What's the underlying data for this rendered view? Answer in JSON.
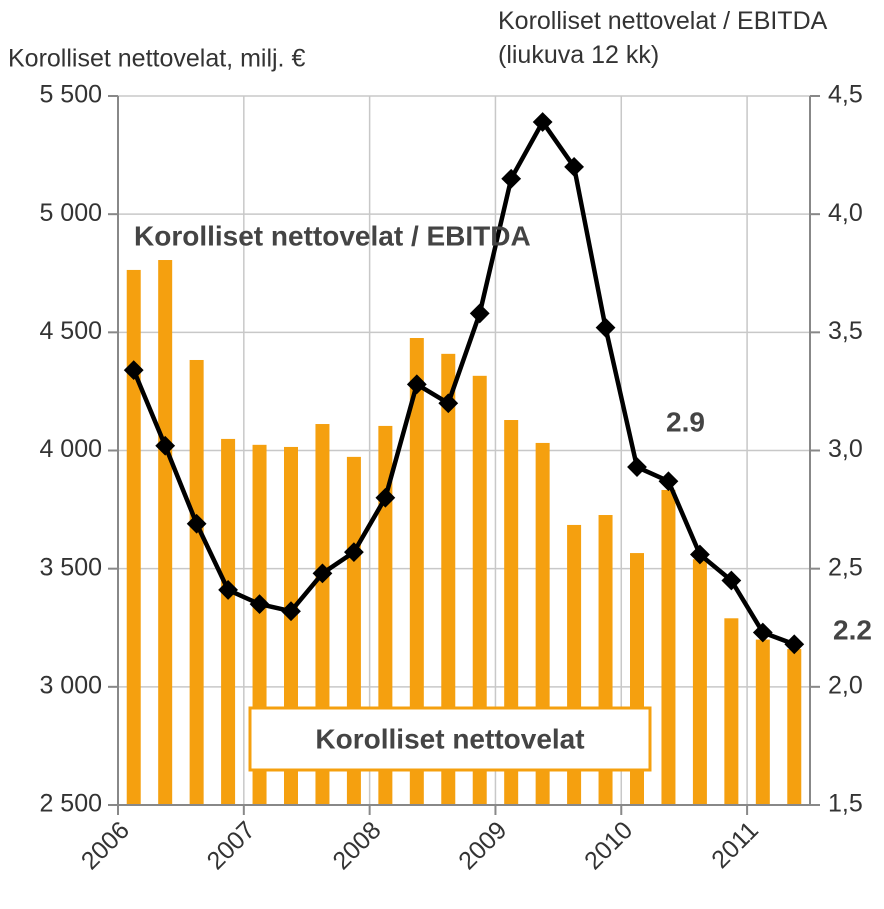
{
  "chart_data": {
    "type": "bar_line",
    "y_axis_label": "Korolliset nettovelat, milj. €",
    "y2_axis_label": "Korolliset nettovelat / EBITDA (liukuva 12 kk)",
    "annotations": [
      "Korolliset nettovelat / EBITDA",
      "Korolliset nettovelat",
      "2.9",
      "2.2"
    ],
    "x": [
      2006.125,
      2006.375,
      2006.625,
      2006.875,
      2007.125,
      2007.375,
      2007.625,
      2007.875,
      2008.125,
      2008.375,
      2008.625,
      2008.875,
      2009.125,
      2009.375,
      2009.625,
      2009.875,
      2010.125,
      2010.375,
      2010.625,
      2010.875,
      2011.125,
      2011.375
    ],
    "series": [
      {
        "name": "Korolliset nettovelat",
        "color": "#f5a00f",
        "kind": "bar",
        "values": [
          4764,
          4806,
          4383,
          4049,
          4024,
          4015,
          4112,
          3973,
          4104,
          4476,
          4409,
          4316,
          4129,
          4032,
          3685,
          3727,
          3566,
          3833,
          3540,
          3290,
          3200,
          3160
        ]
      },
      {
        "name": "Korolliset nettovelat / EBITDA",
        "color": "#000000",
        "kind": "line",
        "axis": "y2",
        "values": [
          3.34,
          3.02,
          2.69,
          2.41,
          2.35,
          2.32,
          2.48,
          2.57,
          2.8,
          3.28,
          3.2,
          3.58,
          4.15,
          4.39,
          4.2,
          3.52,
          2.93,
          2.87,
          2.56,
          2.45,
          2.23,
          2.18
        ]
      }
    ],
    "xlim": [
      2006,
      2011.5
    ],
    "xticks": [
      2006,
      2007,
      2008,
      2009,
      2010,
      2011
    ],
    "ylim": [
      2500,
      5500
    ],
    "yticks": [
      {
        "value": 2500,
        "label": "2 500"
      },
      {
        "value": 3000,
        "label": "3 000"
      },
      {
        "value": 3500,
        "label": "3 500"
      },
      {
        "value": 4000,
        "label": "4 000"
      },
      {
        "value": 4500,
        "label": "4 500"
      },
      {
        "value": 5000,
        "label": "5 000"
      },
      {
        "value": 5500,
        "label": "5 500"
      }
    ],
    "y2lim": [
      1.5,
      4.5
    ],
    "y2ticks": [
      {
        "value": 1.5,
        "label": "1,5"
      },
      {
        "value": 2,
        "label": "2,0"
      },
      {
        "value": 2.5,
        "label": "2,5"
      },
      {
        "value": 3,
        "label": "3,0"
      },
      {
        "value": 3.5,
        "label": "3,5"
      },
      {
        "value": 4,
        "label": "4,0"
      },
      {
        "value": 4.5,
        "label": "4,5"
      }
    ],
    "grid": true
  }
}
